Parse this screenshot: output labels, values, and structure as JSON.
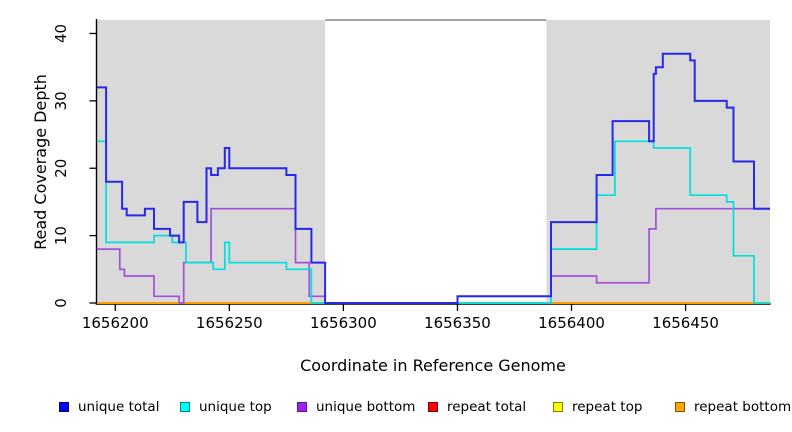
{
  "figure_title": "",
  "axes": {
    "x_title": "Coordinate in Reference Genome",
    "y_title": "Read Coverage Depth"
  },
  "chart_data": {
    "type": "line",
    "step": true,
    "title": "",
    "xlabel": "Coordinate in Reference Genome",
    "ylabel": "Read Coverage Depth",
    "xlim": [
      1656192,
      1656487
    ],
    "ylim": [
      0,
      42
    ],
    "xticks": [
      1656200,
      1656250,
      1656300,
      1656350,
      1656400,
      1656450
    ],
    "yticks": [
      0,
      10,
      20,
      30,
      40
    ],
    "grid": false,
    "plot_background": "#ffffff",
    "shaded_regions": [
      {
        "name": "left-gray-band",
        "x0": 1656192,
        "x1": 1656292,
        "color": "#d9d9d9"
      },
      {
        "name": "right-gray-band",
        "x0": 1656389,
        "x1": 1656487,
        "color": "#d9d9d9"
      }
    ],
    "gap_region": {
      "x0": 1656292,
      "x1": 1656389,
      "top_border_color": "#858585"
    },
    "series": [
      {
        "name": "unique total",
        "color": "#2828e8",
        "width": 2,
        "z": 5,
        "segments": [
          [
            [
              1656192,
              32
            ],
            [
              1656196,
              18
            ],
            [
              1656203,
              14
            ],
            [
              1656205,
              13
            ],
            [
              1656213,
              14
            ],
            [
              1656217,
              11
            ],
            [
              1656224,
              10
            ],
            [
              1656228,
              9
            ],
            [
              1656230,
              15
            ],
            [
              1656236,
              12
            ],
            [
              1656240,
              20
            ],
            [
              1656242,
              19
            ],
            [
              1656245,
              20
            ],
            [
              1656248,
              23
            ],
            [
              1656250,
              20
            ],
            [
              1656275,
              19
            ],
            [
              1656279,
              11
            ],
            [
              1656286,
              6
            ],
            [
              1656292,
              0
            ],
            [
              1656350,
              1
            ],
            [
              1656391,
              12
            ],
            [
              1656411,
              19
            ],
            [
              1656418,
              27
            ],
            [
              1656434,
              24
            ],
            [
              1656436,
              34
            ],
            [
              1656437,
              35
            ],
            [
              1656440,
              37
            ],
            [
              1656452,
              36
            ],
            [
              1656454,
              30
            ],
            [
              1656468,
              29
            ],
            [
              1656471,
              21
            ],
            [
              1656480,
              14
            ],
            [
              1656487,
              14
            ]
          ]
        ]
      },
      {
        "name": "unique top",
        "color": "#00dede",
        "width": 1.7,
        "z": 4,
        "segments": [
          [
            [
              1656192,
              24
            ],
            [
              1656196,
              9
            ],
            [
              1656217,
              10
            ],
            [
              1656225,
              9
            ],
            [
              1656231,
              6
            ],
            [
              1656243,
              5
            ],
            [
              1656248,
              9
            ],
            [
              1656250,
              6
            ],
            [
              1656275,
              5
            ],
            [
              1656286,
              0
            ],
            [
              1656391,
              8
            ],
            [
              1656411,
              16
            ],
            [
              1656419,
              24
            ],
            [
              1656436,
              23
            ],
            [
              1656452,
              16
            ],
            [
              1656468,
              15
            ],
            [
              1656471,
              7
            ],
            [
              1656480,
              0
            ],
            [
              1656487,
              0
            ]
          ]
        ]
      },
      {
        "name": "unique bottom",
        "color": "#a44fdb",
        "width": 1.7,
        "z": 3,
        "segments": [
          [
            [
              1656192,
              8
            ],
            [
              1656202,
              5
            ],
            [
              1656204,
              4
            ],
            [
              1656217,
              1
            ],
            [
              1656228,
              0
            ],
            [
              1656230,
              6
            ],
            [
              1656242,
              14
            ],
            [
              1656279,
              6
            ],
            [
              1656285,
              1
            ],
            [
              1656292,
              0
            ],
            [
              1656350,
              1
            ],
            [
              1656391,
              4
            ],
            [
              1656411,
              3
            ],
            [
              1656434,
              11
            ],
            [
              1656437,
              14
            ],
            [
              1656487,
              14
            ]
          ]
        ]
      },
      {
        "name": "repeat total",
        "color": "#ff0000",
        "width": 1.7,
        "z": 0,
        "segments": [],
        "note": "coverage 0 across plot, hidden under repeat bottom line"
      },
      {
        "name": "repeat top",
        "color": "#ffff00",
        "width": 1.7,
        "z": 0,
        "segments": [],
        "note": "coverage 0 across plot, hidden under repeat bottom line"
      },
      {
        "name": "repeat bottom",
        "color": "#ff9d00",
        "width": 2,
        "z": 2,
        "segments": [
          [
            [
              1656192,
              0
            ],
            [
              1656292,
              0
            ]
          ],
          [
            [
              1656389,
              0
            ],
            [
              1656487,
              0
            ]
          ]
        ]
      },
      {
        "name": "baseline-green-unlabeled",
        "color": "#90ee90",
        "width": 1.7,
        "z": 1,
        "segments": [
          [
            [
              1656286,
              0
            ],
            [
              1656292,
              0
            ]
          ],
          [
            [
              1656350,
              0
            ],
            [
              1656389,
              0
            ]
          ],
          [
            [
              1656480,
              0
            ],
            [
              1656487,
              0
            ]
          ]
        ]
      }
    ],
    "legend": {
      "position": "bottom",
      "items": [
        {
          "label": "unique total",
          "fill": "#0000ff",
          "border": "#000080"
        },
        {
          "label": "unique top",
          "fill": "#00ffff",
          "border": "#007f7f"
        },
        {
          "label": "unique bottom",
          "fill": "#a020f0",
          "border": "#551a8b"
        },
        {
          "label": "repeat total",
          "fill": "#ff0000",
          "border": "#7f0000"
        },
        {
          "label": "repeat top",
          "fill": "#ffff00",
          "border": "#7f7f00"
        },
        {
          "label": "repeat bottom",
          "fill": "#ffa500",
          "border": "#7f5200"
        }
      ]
    }
  }
}
